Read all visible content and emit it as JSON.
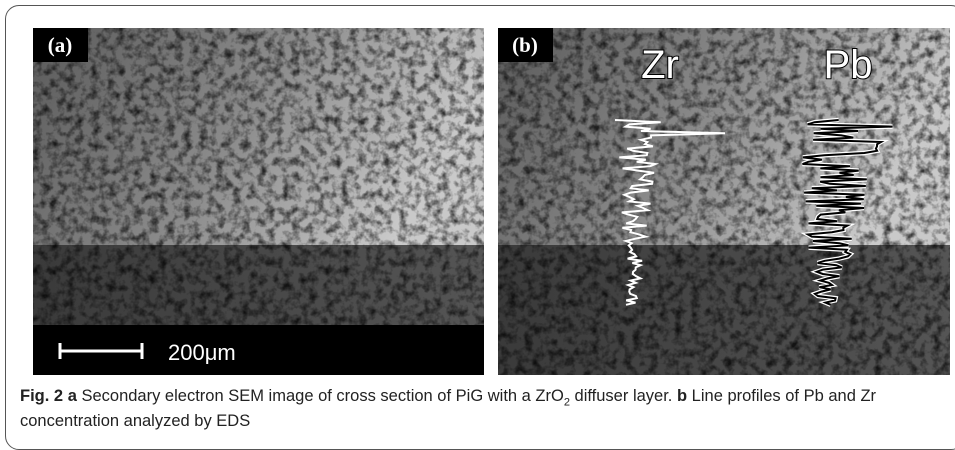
{
  "figure": {
    "panels": [
      {
        "label": "(a)",
        "scale_text": "200μm"
      },
      {
        "label": "(b)",
        "profile_labels": [
          "Zr",
          "Pb"
        ]
      }
    ],
    "caption": {
      "label": "Fig. 2",
      "a_marker": "a",
      "a_text": "Secondary electron SEM image of cross section of PiG with a ZrO",
      "a_subscript": "2",
      "a_text_end": "diffuser layer.",
      "b_marker": "b",
      "b_text": "Line profiles of Pb and Zr concentration analyzed by EDS"
    }
  }
}
